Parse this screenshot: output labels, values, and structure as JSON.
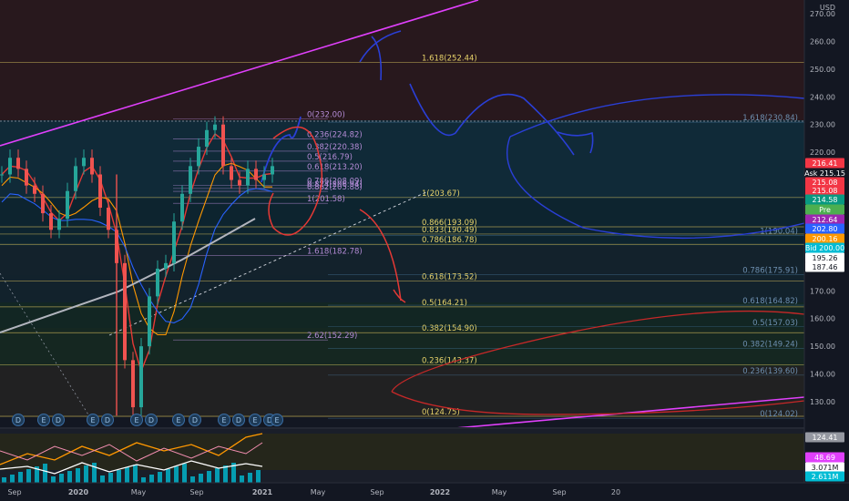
{
  "currency": "USD",
  "price_axis": [
    "270.00",
    "260.00",
    "250.00",
    "240.00",
    "230.00",
    "220.00",
    "210.00",
    "200.00",
    "190.00",
    "180.00",
    "170.00",
    "160.00",
    "150.00",
    "140.00",
    "130.00"
  ],
  "time_axis": [
    "Sep",
    "2020",
    "May",
    "Sep",
    "2021",
    "May",
    "Sep",
    "2022",
    "May",
    "Sep",
    "20"
  ],
  "price_tags": [
    {
      "text": "216.41",
      "color": "#f23645"
    },
    {
      "text": "Ask  215.15",
      "color": "#131722",
      "fg": "#ffffff"
    },
    {
      "text": "215.08",
      "color": "#f23645"
    },
    {
      "text": "215.08",
      "color": "#f23645"
    },
    {
      "text": "214.58",
      "color": "#089981"
    },
    {
      "text": "Pre",
      "color": "#4caf50"
    },
    {
      "text": "212.64",
      "color": "#9c27b0"
    },
    {
      "text": "202.80",
      "color": "#2962ff"
    },
    {
      "text": "200.16",
      "color": "#ff9800"
    },
    {
      "text": "Bid  200.00",
      "color": "#00bcd4"
    },
    {
      "text": "195.26",
      "color": "#ffffff",
      "fg": "#131722"
    },
    {
      "text": "187.46",
      "color": "#ffffff",
      "fg": "#131722"
    }
  ],
  "indicator_tags": [
    {
      "text": "124.41",
      "color": "#9598a1"
    },
    {
      "text": "48.69",
      "color": "#e040fb"
    },
    {
      "text": "3.071M",
      "color": "#ffffff",
      "fg": "#131722"
    },
    {
      "text": "2.611M",
      "color": "#00bcd4"
    }
  ],
  "earnings_markers": [
    "D",
    "E",
    "D",
    "E",
    "D",
    "E",
    "D",
    "E",
    "D",
    "E",
    "D",
    "E",
    "D",
    "E",
    "E"
  ],
  "chart_data": {
    "type": "candlestick",
    "symbol_currency": "USD",
    "ylim": [
      120,
      275
    ],
    "fib_main": [
      {
        "label": "1.618(252.44)",
        "price": 252.44
      },
      {
        "label": "1(203.67)",
        "price": 203.67
      },
      {
        "label": "0.866(193.09)",
        "price": 193.09
      },
      {
        "label": "0.833(190.49)",
        "price": 190.49
      },
      {
        "label": "0.786(186.78)",
        "price": 186.78
      },
      {
        "label": "0.618(173.52)",
        "price": 173.52
      },
      {
        "label": "0.5(164.21)",
        "price": 164.21
      },
      {
        "label": "0.382(154.90)",
        "price": 154.9
      },
      {
        "label": "0.236(143.37)",
        "price": 143.37
      },
      {
        "label": "0(124.75)",
        "price": 124.75
      }
    ],
    "fib_inner": [
      {
        "label": "0(232.00)",
        "price": 232.0
      },
      {
        "label": "0.236(224.82)",
        "price": 224.82
      },
      {
        "label": "0.382(220.38)",
        "price": 220.38
      },
      {
        "label": "0.5(216.79)",
        "price": 216.79
      },
      {
        "label": "0.618(213.20)",
        "price": 213.2
      },
      {
        "label": "0.786(208.09)",
        "price": 208.09
      },
      {
        "label": "0.824(206.94)",
        "price": 206.94
      },
      {
        "label": "0.862(205.88)",
        "price": 205.88
      },
      {
        "label": "1(201.58)",
        "price": 201.58
      },
      {
        "label": "1.618(182.78)",
        "price": 182.78
      },
      {
        "label": "2.62(152.29)",
        "price": 152.29
      }
    ],
    "fib_right": [
      {
        "label": "1.618(230.84)",
        "price": 230.84
      },
      {
        "label": "1(190.04)",
        "price": 190.04
      },
      {
        "label": "0.786(175.91)",
        "price": 175.91
      },
      {
        "label": "0.618(164.82)",
        "price": 164.82
      },
      {
        "label": "0.5(157.03)",
        "price": 157.03
      },
      {
        "label": "0.382(149.24)",
        "price": 149.24
      },
      {
        "label": "0.236(139.60)",
        "price": 139.6
      },
      {
        "label": "0(124.02)",
        "price": 124.02
      }
    ],
    "price_series": [
      212,
      218,
      214,
      208,
      205,
      198,
      192,
      196,
      206,
      215,
      218,
      212,
      200,
      192,
      180,
      145,
      128,
      150,
      168,
      178,
      180,
      195,
      205,
      215,
      222,
      228,
      230,
      215,
      210,
      208,
      214,
      210,
      212,
      215
    ]
  }
}
